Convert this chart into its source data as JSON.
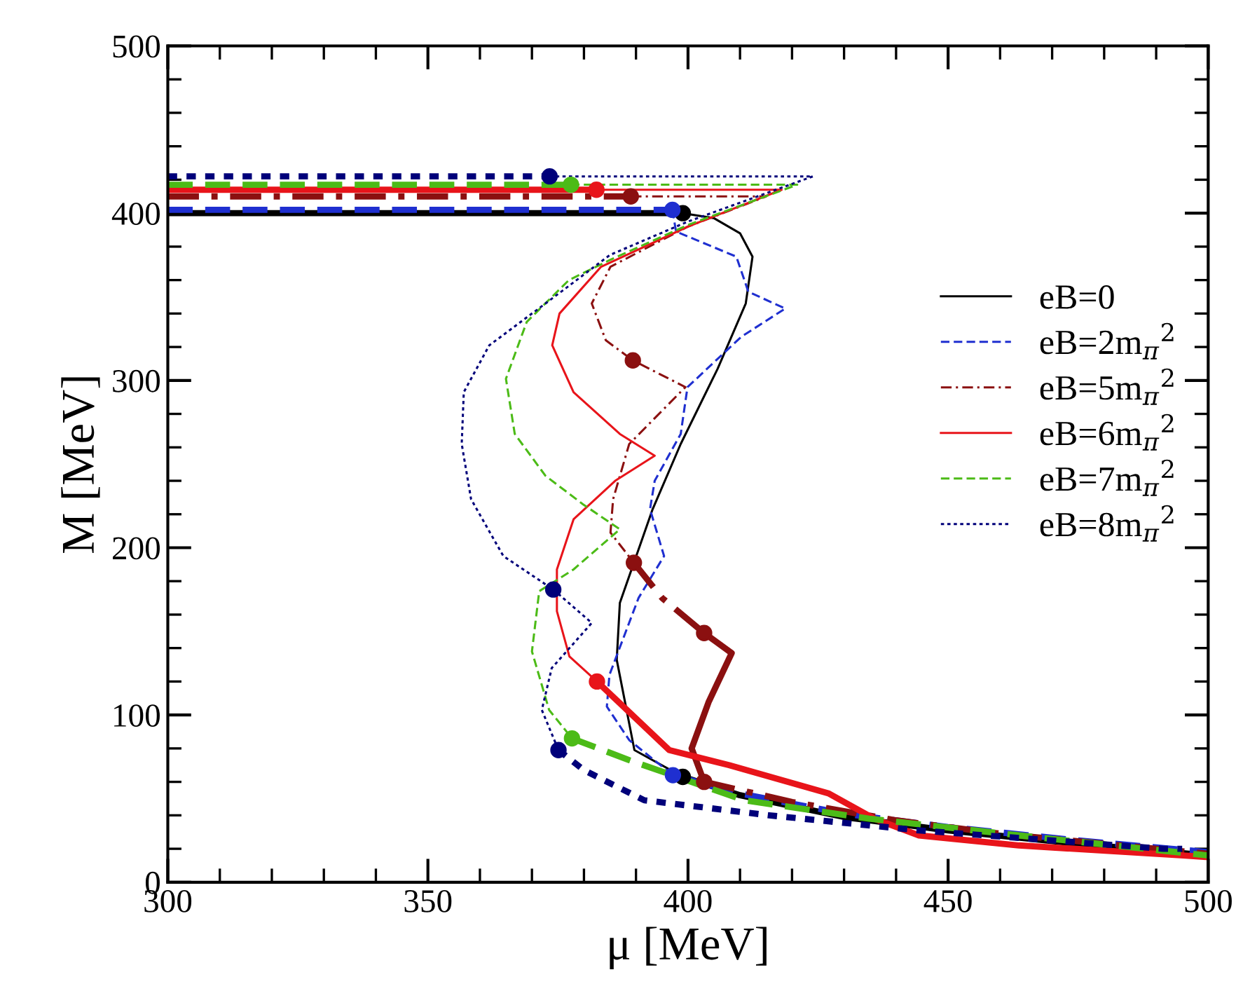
{
  "chart_data": {
    "type": "line",
    "xlabel": "μ [MeV]",
    "ylabel": "M [MeV]",
    "xlim": [
      300,
      500
    ],
    "ylim": [
      0,
      500
    ],
    "xticks": [
      300,
      {
        "value": 310,
        "label": null
      },
      {
        "value": 320,
        "label": null
      },
      {
        "value": 330,
        "label": null
      },
      {
        "value": 340,
        "label": null
      },
      350,
      {
        "value": 360,
        "label": null
      },
      {
        "value": 370,
        "label": null
      },
      {
        "value": 380,
        "label": null
      },
      {
        "value": 390,
        "label": null
      },
      400,
      {
        "value": 410,
        "label": null
      },
      {
        "value": 420,
        "label": null
      },
      {
        "value": 430,
        "label": null
      },
      {
        "value": 440,
        "label": null
      },
      450,
      {
        "value": 460,
        "label": null
      },
      {
        "value": 470,
        "label": null
      },
      {
        "value": 480,
        "label": null
      },
      {
        "value": 490,
        "label": null
      },
      500
    ],
    "yticks": [
      0,
      {
        "value": 20,
        "label": null
      },
      {
        "value": 40,
        "label": null
      },
      {
        "value": 60,
        "label": null
      },
      {
        "value": 80,
        "label": null
      },
      100,
      {
        "value": 120,
        "label": null
      },
      {
        "value": 140,
        "label": null
      },
      {
        "value": 160,
        "label": null
      },
      {
        "value": 180,
        "label": null
      },
      200,
      {
        "value": 220,
        "label": null
      },
      {
        "value": 240,
        "label": null
      },
      {
        "value": 260,
        "label": null
      },
      {
        "value": 280,
        "label": null
      },
      300,
      {
        "value": 320,
        "label": null
      },
      {
        "value": 340,
        "label": null
      },
      {
        "value": 360,
        "label": null
      },
      {
        "value": 380,
        "label": null
      },
      400,
      {
        "value": 420,
        "label": null
      },
      {
        "value": 440,
        "label": null
      },
      {
        "value": 460,
        "label": null
      },
      {
        "value": 480,
        "label": null
      },
      500
    ],
    "grid": false,
    "legend": "right",
    "series": [
      {
        "name": "eB=0",
        "color": "#000000",
        "line_style": "solid",
        "x": [
          399,
          405,
          410,
          412.4,
          411.1,
          405.7,
          398.6,
          393.2,
          386.9,
          386.3,
          389.7,
          399
        ],
        "values": [
          400,
          397,
          388,
          374,
          346,
          307,
          262,
          223,
          167,
          133,
          79,
          63
        ]
      },
      {
        "name": "eB=2m$_{π}$$^{2}$",
        "color": "#1f2fd0",
        "line_style": "dashed",
        "x": [
          397,
          397.7,
          409.3,
          411.6,
          418.7,
          410.2,
          399.9,
          398.6,
          393.6,
          392.7,
          395.4,
          390.5,
          384.9,
          384.4,
          388.7,
          397.1
        ],
        "values": [
          402,
          389,
          374,
          353,
          343,
          326,
          296,
          268,
          240,
          223,
          195,
          170,
          124,
          105,
          85,
          64
        ]
      },
      {
        "name": "eB=5m$_{π}$$^{2}$",
        "color": "#8b1010",
        "line_style": "dashdot",
        "x": [
          389,
          415,
          400,
          385.1,
          381.5,
          384.2,
          389.4,
          399.5,
          388.7,
          385.6,
          385.1,
          389.6
        ],
        "values": [
          410,
          410,
          392,
          368,
          346,
          324,
          312,
          296,
          262,
          229,
          209,
          191
        ]
      },
      {
        "name": "eB=6m$_{π}$$^{2}$",
        "color": "#e8141a",
        "line_style": "solid",
        "x": [
          382.4,
          418,
          400,
          383.3,
          375.3,
          373.9,
          378,
          386.9,
          393.6,
          386,
          378,
          374.8,
          374.8,
          377.2,
          382.5
        ],
        "values": [
          414,
          414,
          392,
          368,
          340,
          321,
          293,
          268,
          255,
          240,
          217,
          187,
          162,
          135,
          120
        ]
      },
      {
        "name": "eB=7m$_{π}$$^{2}$",
        "color": "#4cbb17",
        "line_style": "dashed",
        "x": [
          377.5,
          421,
          400,
          385,
          377.1,
          369,
          365,
          366.7,
          372.6,
          379.8,
          386.9,
          378,
          371.4,
          370,
          373.3,
          377.7
        ],
        "values": [
          417,
          417,
          393,
          372,
          360,
          335,
          301,
          268,
          243,
          226,
          211,
          187,
          174,
          138,
          103,
          86
        ]
      },
      {
        "name": "eB=8m$_{π}$$^{2}$",
        "color": "#00007a",
        "line_style": "dotted",
        "x": [
          373.4,
          424,
          400,
          385,
          372.6,
          361.8,
          356.9,
          356.5,
          358.3,
          364.5,
          374.1,
          381.5,
          373.8,
          371.9,
          375.1
        ],
        "values": [
          422,
          422,
          395,
          375,
          346,
          321,
          293,
          262,
          229,
          195,
          175,
          155,
          128,
          103,
          79
        ]
      },
      {
        "color": "#000000",
        "line_style": "solid",
        "x": [
          300,
          399
        ],
        "values": [
          400,
          400
        ]
      },
      {
        "color": "#000000",
        "line_style": "solid",
        "x": [
          399,
          410,
          430,
          450,
          475,
          500
        ],
        "values": [
          63,
          52,
          39,
          31,
          23,
          16
        ]
      },
      {
        "color": "#1f2fd0",
        "line_style": "dashed",
        "x": [
          300,
          397
        ],
        "values": [
          402,
          402
        ]
      },
      {
        "color": "#1f2fd0",
        "line_style": "dashed",
        "x": [
          397.1,
          410,
          430,
          450,
          475,
          500
        ],
        "values": [
          64,
          53,
          41,
          33,
          25,
          18
        ]
      },
      {
        "color": "#8b1010",
        "line_style": "dashdot",
        "x": [
          300,
          389
        ],
        "values": [
          410,
          410
        ]
      },
      {
        "color": "#8b1010",
        "line_style": "dashdot",
        "x": [
          389.6,
          395,
          403.1
        ],
        "values": [
          191,
          170,
          149
        ]
      },
      {
        "color": "#8b1010",
        "line_style": "solid",
        "x": [
          403.1,
          408.4,
          404,
          400.7,
          403.1
        ],
        "values": [
          149,
          137,
          108,
          80,
          60
        ]
      },
      {
        "color": "#8b1010",
        "line_style": "dashdot",
        "x": [
          403.1,
          420,
          440,
          460,
          480,
          500
        ],
        "values": [
          60,
          48,
          37,
          29,
          23,
          17
        ]
      },
      {
        "color": "#e8141a",
        "line_style": "solid",
        "x": [
          300,
          382.4
        ],
        "values": [
          414,
          414
        ]
      },
      {
        "color": "#e8141a",
        "line_style": "solid",
        "x": [
          382.5,
          396.4,
          407.9,
          427.1,
          435.8,
          444.4,
          463.6,
          495.2,
          500
        ],
        "values": [
          120,
          79,
          70,
          53,
          38,
          28,
          22,
          16,
          15
        ]
      },
      {
        "color": "#4cbb17",
        "line_style": "dashed",
        "x": [
          300,
          377.5
        ],
        "values": [
          417,
          417
        ]
      },
      {
        "color": "#4cbb17",
        "line_style": "dashed",
        "x": [
          377.7,
          388.7,
          410.8,
          434.8,
          463.6,
          500
        ],
        "values": [
          86,
          73,
          49,
          38,
          28,
          16
        ]
      },
      {
        "color": "#00007a",
        "line_style": "dotted",
        "x": [
          300,
          373.4
        ],
        "values": [
          422,
          422
        ]
      },
      {
        "color": "#00007a",
        "line_style": "dotted",
        "x": [
          375.1,
          380,
          391.6,
          415.6,
          444.4,
          491.4,
          495
        ],
        "values": [
          79,
          67,
          49,
          40,
          31,
          20,
          20
        ]
      },
      {
        "type": "scatter",
        "marker": "circle",
        "color": "#000000",
        "x": [
          399,
          399
        ],
        "values": [
          400,
          63
        ]
      },
      {
        "type": "scatter",
        "marker": "circle",
        "color": "#1f2fd0",
        "x": [
          397,
          397.1
        ],
        "values": [
          402,
          64
        ]
      },
      {
        "type": "scatter",
        "marker": "circle",
        "color": "#8b1010",
        "x": [
          389,
          389.4,
          389.6,
          403.1,
          403.1
        ],
        "values": [
          410,
          312,
          191,
          149,
          60
        ]
      },
      {
        "type": "scatter",
        "marker": "circle",
        "color": "#e8141a",
        "x": [
          382.4,
          382.5
        ],
        "values": [
          414,
          120
        ]
      },
      {
        "type": "scatter",
        "marker": "circle",
        "color": "#4cbb17",
        "x": [
          377.5,
          377.7
        ],
        "values": [
          417,
          86
        ]
      },
      {
        "type": "scatter",
        "marker": "circle",
        "color": "#00007a",
        "x": [
          373.4,
          374.1,
          375.1
        ],
        "values": [
          422,
          175,
          79
        ]
      }
    ]
  }
}
